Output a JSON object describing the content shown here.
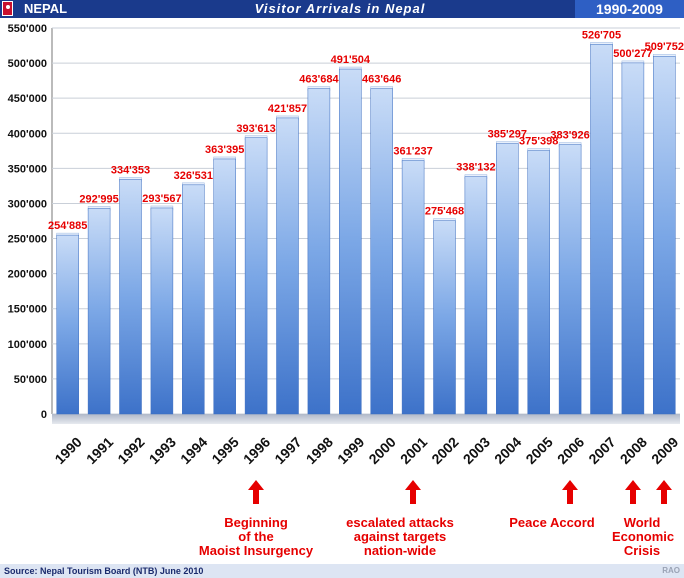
{
  "header": {
    "country": "NEPAL",
    "title": "Visitor Arrivals in Nepal",
    "years": "1990-2009"
  },
  "chart_data": {
    "type": "bar",
    "title": "Visitor Arrivals in Nepal",
    "categories": [
      "1990",
      "1991",
      "1992",
      "1993",
      "1994",
      "1995",
      "1996",
      "1997",
      "1998",
      "1999",
      "2000",
      "2001",
      "2002",
      "2003",
      "2004",
      "2005",
      "2006",
      "2007",
      "2008",
      "2009"
    ],
    "values": [
      254885,
      292995,
      334353,
      293567,
      326531,
      363395,
      393613,
      421857,
      463684,
      491504,
      463646,
      361237,
      275468,
      338132,
      385297,
      375398,
      383926,
      526705,
      500277,
      509752
    ],
    "value_labels": [
      "254'885",
      "292'995",
      "334'353",
      "293'567",
      "326'531",
      "363'395",
      "393'613",
      "421'857",
      "463'684",
      "491'504",
      "463'646",
      "361'237",
      "275'468",
      "338'132",
      "385'297",
      "375'398",
      "383'926",
      "526'705",
      "500'277",
      "509'752"
    ],
    "y_ticks": [
      0,
      50000,
      100000,
      150000,
      200000,
      250000,
      300000,
      350000,
      400000,
      450000,
      500000,
      550000
    ],
    "y_tick_labels": [
      "0",
      "50'000",
      "100'000",
      "150'000",
      "200'000",
      "250'000",
      "300'000",
      "350'000",
      "400'000",
      "450'000",
      "500'000",
      "550'000"
    ],
    "ylim": [
      0,
      550000
    ],
    "grid": true,
    "bar_color": "#5b8edb",
    "label_color": "#e60000",
    "xlabel": "",
    "ylabel": ""
  },
  "annotations": [
    {
      "year": "1996",
      "text": "Beginning\nof the\nMaoist Insurgency"
    },
    {
      "year": "2001",
      "text": "escalated attacks\nagainst targets\nnation-wide"
    },
    {
      "year": "2006",
      "text": "Peace Accord"
    },
    {
      "year": "2008",
      "text": "World\nEconomic\nCrisis"
    },
    {
      "year": "2009",
      "text": ""
    }
  ],
  "footer": {
    "source": "Source: Nepal Tourism Board (NTB) June 2010",
    "author": "RAO"
  },
  "colors": {
    "header_bg": "#1a3a8c",
    "accent_red": "#e60000"
  }
}
